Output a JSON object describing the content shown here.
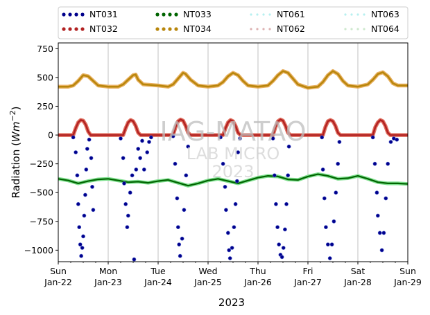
{
  "chart_data": {
    "type": "scatter",
    "xlabel": "2023",
    "ylabel_main": "Radiation (",
    "ylabel_unit": "Wm",
    "ylabel_exp": "−2",
    "ylabel_close": ")",
    "ylim": [
      -1100,
      800
    ],
    "xlim": [
      0,
      7
    ],
    "grid": "vertical",
    "legend_position": "top",
    "yticks": [
      {
        "value": 750,
        "label": "750"
      },
      {
        "value": 500,
        "label": "500"
      },
      {
        "value": 250,
        "label": "250"
      },
      {
        "value": 0,
        "label": "0"
      },
      {
        "value": -250,
        "label": "−250"
      },
      {
        "value": -500,
        "label": "−500"
      },
      {
        "value": -750,
        "label": "−750"
      },
      {
        "value": -1000,
        "label": "−1000"
      }
    ],
    "xticks": [
      {
        "value": 0,
        "day": "Sun",
        "date": "Jan-22"
      },
      {
        "value": 1,
        "day": "Mon",
        "date": "Jan-23"
      },
      {
        "value": 2,
        "day": "Tue",
        "date": "Jan-24"
      },
      {
        "value": 3,
        "day": "Wed",
        "date": "Jan-25"
      },
      {
        "value": 4,
        "day": "Thu",
        "date": "Jan-26"
      },
      {
        "value": 5,
        "day": "Fri",
        "date": "Jan-27"
      },
      {
        "value": 6,
        "day": "Sat",
        "date": "Jan-28"
      },
      {
        "value": 7,
        "day": "Sun",
        "date": "Jan-29"
      }
    ],
    "series": [
      {
        "name": "NT031",
        "color": "#00008b",
        "values": [
          [
            0.3,
            -20
          ],
          [
            0.35,
            -150
          ],
          [
            0.38,
            -350
          ],
          [
            0.4,
            -600
          ],
          [
            0.42,
            -800
          ],
          [
            0.44,
            -950
          ],
          [
            0.46,
            -1050
          ],
          [
            0.48,
            -980
          ],
          [
            0.5,
            -880
          ],
          [
            0.52,
            -700
          ],
          [
            0.54,
            -520
          ],
          [
            0.56,
            -300
          ],
          [
            0.58,
            -120
          ],
          [
            0.62,
            -40
          ],
          [
            0.66,
            -200
          ],
          [
            0.68,
            -450
          ],
          [
            0.7,
            -650
          ],
          [
            1.25,
            -30
          ],
          [
            1.3,
            -200
          ],
          [
            1.32,
            -420
          ],
          [
            1.35,
            -600
          ],
          [
            1.38,
            -800
          ],
          [
            1.4,
            -700
          ],
          [
            1.44,
            -500
          ],
          [
            1.48,
            -350
          ],
          [
            1.52,
            -1080
          ],
          [
            1.56,
            -300
          ],
          [
            1.6,
            -120
          ],
          [
            1.64,
            -200
          ],
          [
            1.68,
            -50
          ],
          [
            1.72,
            -300
          ],
          [
            1.78,
            -150
          ],
          [
            1.82,
            -60
          ],
          [
            1.86,
            -20
          ],
          [
            2.3,
            -10
          ],
          [
            2.34,
            -250
          ],
          [
            2.38,
            -550
          ],
          [
            2.4,
            -800
          ],
          [
            2.42,
            -950
          ],
          [
            2.44,
            -1050
          ],
          [
            2.48,
            -900
          ],
          [
            2.52,
            -650
          ],
          [
            2.56,
            -350
          ],
          [
            2.6,
            -100
          ],
          [
            3.25,
            -20
          ],
          [
            3.3,
            -250
          ],
          [
            3.34,
            -450
          ],
          [
            3.36,
            -650
          ],
          [
            3.4,
            -850
          ],
          [
            3.42,
            -1000
          ],
          [
            3.44,
            -1070
          ],
          [
            3.48,
            -980
          ],
          [
            3.52,
            -800
          ],
          [
            3.55,
            -600
          ],
          [
            3.58,
            -400
          ],
          [
            3.6,
            -150
          ],
          [
            3.64,
            -30
          ],
          [
            4.3,
            -30
          ],
          [
            4.33,
            -350
          ],
          [
            4.36,
            -600
          ],
          [
            4.39,
            -800
          ],
          [
            4.42,
            -950
          ],
          [
            4.45,
            -1040
          ],
          [
            4.48,
            -1060
          ],
          [
            4.51,
            -980
          ],
          [
            4.54,
            -820
          ],
          [
            4.57,
            -600
          ],
          [
            4.6,
            -350
          ],
          [
            4.62,
            -100
          ],
          [
            5.28,
            -20
          ],
          [
            5.3,
            -300
          ],
          [
            5.33,
            -550
          ],
          [
            5.36,
            -800
          ],
          [
            5.4,
            -950
          ],
          [
            5.44,
            -1070
          ],
          [
            5.48,
            -950
          ],
          [
            5.52,
            -750
          ],
          [
            5.56,
            -500
          ],
          [
            5.6,
            -250
          ],
          [
            5.63,
            -60
          ],
          [
            6.3,
            -20
          ],
          [
            6.34,
            -250
          ],
          [
            6.38,
            -500
          ],
          [
            6.4,
            -700
          ],
          [
            6.44,
            -850
          ],
          [
            6.48,
            -1000
          ],
          [
            6.52,
            -850
          ],
          [
            6.56,
            -550
          ],
          [
            6.6,
            -250
          ],
          [
            6.66,
            -60
          ],
          [
            6.72,
            -30
          ],
          [
            6.78,
            -40
          ]
        ]
      },
      {
        "name": "NT032",
        "color": "#b22222",
        "values": [
          [
            0.0,
            0
          ],
          [
            0.3,
            0
          ],
          [
            0.35,
            60
          ],
          [
            0.4,
            110
          ],
          [
            0.45,
            130
          ],
          [
            0.5,
            125
          ],
          [
            0.55,
            90
          ],
          [
            0.6,
            30
          ],
          [
            0.65,
            0
          ],
          [
            1.0,
            0
          ],
          [
            1.3,
            0
          ],
          [
            1.35,
            60
          ],
          [
            1.4,
            110
          ],
          [
            1.45,
            130
          ],
          [
            1.5,
            120
          ],
          [
            1.55,
            80
          ],
          [
            1.6,
            20
          ],
          [
            1.65,
            0
          ],
          [
            2.0,
            0
          ],
          [
            2.3,
            0
          ],
          [
            2.35,
            70
          ],
          [
            2.4,
            120
          ],
          [
            2.45,
            135
          ],
          [
            2.5,
            125
          ],
          [
            2.55,
            80
          ],
          [
            2.6,
            20
          ],
          [
            2.65,
            0
          ],
          [
            3.0,
            0
          ],
          [
            3.3,
            0
          ],
          [
            3.35,
            60
          ],
          [
            3.4,
            110
          ],
          [
            3.45,
            130
          ],
          [
            3.5,
            120
          ],
          [
            3.55,
            80
          ],
          [
            3.6,
            20
          ],
          [
            3.65,
            0
          ],
          [
            4.0,
            0
          ],
          [
            4.3,
            0
          ],
          [
            4.35,
            70
          ],
          [
            4.4,
            120
          ],
          [
            4.45,
            135
          ],
          [
            4.5,
            125
          ],
          [
            4.55,
            80
          ],
          [
            4.6,
            20
          ],
          [
            4.65,
            0
          ],
          [
            5.0,
            0
          ],
          [
            5.3,
            0
          ],
          [
            5.35,
            70
          ],
          [
            5.4,
            120
          ],
          [
            5.45,
            130
          ],
          [
            5.5,
            120
          ],
          [
            5.55,
            80
          ],
          [
            5.6,
            20
          ],
          [
            5.65,
            0
          ],
          [
            6.0,
            0
          ],
          [
            6.3,
            0
          ],
          [
            6.35,
            70
          ],
          [
            6.4,
            110
          ],
          [
            6.45,
            130
          ],
          [
            6.5,
            120
          ],
          [
            6.55,
            80
          ],
          [
            6.6,
            20
          ],
          [
            6.65,
            0
          ],
          [
            7.0,
            0
          ]
        ]
      },
      {
        "name": "NT033",
        "color": "#006400",
        "values": [
          [
            0.0,
            -380
          ],
          [
            0.2,
            -395
          ],
          [
            0.4,
            -420
          ],
          [
            0.6,
            -400
          ],
          [
            0.8,
            -385
          ],
          [
            1.0,
            -380
          ],
          [
            1.2,
            -395
          ],
          [
            1.4,
            -410
          ],
          [
            1.6,
            -405
          ],
          [
            1.8,
            -415
          ],
          [
            2.0,
            -400
          ],
          [
            2.2,
            -390
          ],
          [
            2.4,
            -415
          ],
          [
            2.6,
            -440
          ],
          [
            2.8,
            -420
          ],
          [
            3.0,
            -395
          ],
          [
            3.2,
            -380
          ],
          [
            3.4,
            -400
          ],
          [
            3.6,
            -420
          ],
          [
            3.8,
            -395
          ],
          [
            4.0,
            -370
          ],
          [
            4.2,
            -355
          ],
          [
            4.4,
            -360
          ],
          [
            4.6,
            -385
          ],
          [
            4.8,
            -390
          ],
          [
            5.0,
            -360
          ],
          [
            5.2,
            -340
          ],
          [
            5.4,
            -355
          ],
          [
            5.6,
            -380
          ],
          [
            5.8,
            -375
          ],
          [
            6.0,
            -355
          ],
          [
            6.2,
            -380
          ],
          [
            6.4,
            -410
          ],
          [
            6.6,
            -420
          ],
          [
            6.8,
            -420
          ],
          [
            7.0,
            -425
          ]
        ]
      },
      {
        "name": "NT034",
        "color": "#b8860b",
        "values": [
          [
            0.0,
            420
          ],
          [
            0.2,
            420
          ],
          [
            0.3,
            430
          ],
          [
            0.4,
            470
          ],
          [
            0.5,
            520
          ],
          [
            0.6,
            510
          ],
          [
            0.7,
            470
          ],
          [
            0.8,
            430
          ],
          [
            1.0,
            420
          ],
          [
            1.2,
            420
          ],
          [
            1.3,
            440
          ],
          [
            1.4,
            480
          ],
          [
            1.5,
            520
          ],
          [
            1.55,
            525
          ],
          [
            1.6,
            480
          ],
          [
            1.7,
            440
          ],
          [
            2.0,
            430
          ],
          [
            2.2,
            420
          ],
          [
            2.3,
            440
          ],
          [
            2.4,
            490
          ],
          [
            2.5,
            540
          ],
          [
            2.55,
            530
          ],
          [
            2.65,
            480
          ],
          [
            2.8,
            430
          ],
          [
            3.0,
            420
          ],
          [
            3.2,
            430
          ],
          [
            3.3,
            460
          ],
          [
            3.4,
            510
          ],
          [
            3.5,
            540
          ],
          [
            3.6,
            520
          ],
          [
            3.7,
            470
          ],
          [
            3.8,
            430
          ],
          [
            4.0,
            420
          ],
          [
            4.2,
            430
          ],
          [
            4.3,
            470
          ],
          [
            4.4,
            520
          ],
          [
            4.5,
            555
          ],
          [
            4.6,
            540
          ],
          [
            4.7,
            490
          ],
          [
            4.8,
            440
          ],
          [
            5.0,
            410
          ],
          [
            5.2,
            420
          ],
          [
            5.3,
            460
          ],
          [
            5.4,
            520
          ],
          [
            5.5,
            555
          ],
          [
            5.6,
            530
          ],
          [
            5.7,
            470
          ],
          [
            5.8,
            430
          ],
          [
            6.0,
            420
          ],
          [
            6.2,
            440
          ],
          [
            6.3,
            480
          ],
          [
            6.4,
            530
          ],
          [
            6.5,
            545
          ],
          [
            6.6,
            510
          ],
          [
            6.7,
            450
          ],
          [
            6.8,
            430
          ],
          [
            7.0,
            430
          ]
        ]
      },
      {
        "name": "NT061",
        "color": "#afeeee",
        "values": []
      },
      {
        "name": "NT062",
        "color": "#d8a9a9",
        "values": []
      },
      {
        "name": "NT063",
        "color": "#afeeee",
        "values": []
      },
      {
        "name": "NT064",
        "color": "#c8e6c8",
        "values": []
      }
    ]
  },
  "watermark": {
    "line1": "IAG-MATAO",
    "line2": "LAB MICRO",
    "line3": "2023"
  }
}
